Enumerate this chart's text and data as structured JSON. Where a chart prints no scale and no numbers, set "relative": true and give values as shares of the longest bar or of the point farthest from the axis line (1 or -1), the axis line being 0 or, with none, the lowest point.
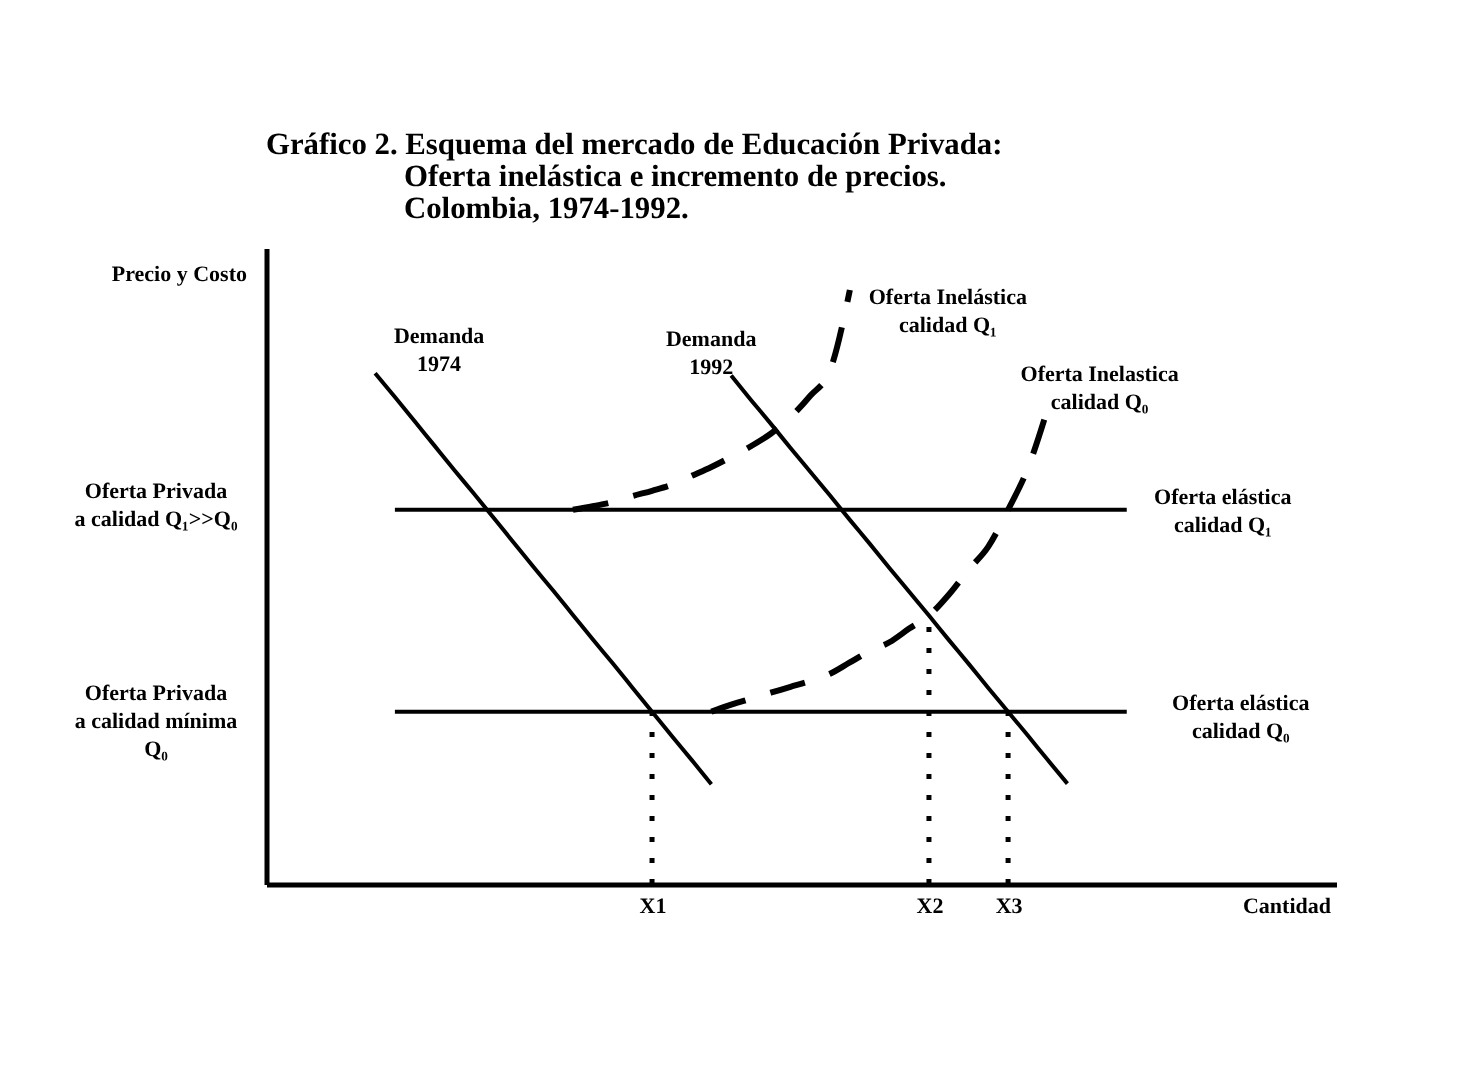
{
  "chart_data": {
    "type": "line",
    "title": "Gráfico 2. Esquema del mercado de Educación Privada:",
    "subtitle": "Oferta inelástica e incremento de precios.\nColombia, 1974-1992.",
    "xlabel": "Cantidad",
    "ylabel": "Precio y Costo",
    "relative": true,
    "tick_labels": "x",
    "line_style": "solid",
    "categories": [
      null,
      null,
      null,
      null,
      null,
      null,
      null,
      null,
      null,
      null,
      null,
      null,
      null,
      null,
      null,
      null,
      null,
      null,
      "X1",
      null,
      null,
      null,
      null,
      null,
      null,
      null,
      null,
      null,
      null,
      null,
      null,
      null,
      "X2",
      null,
      null,
      null,
      "X3",
      null,
      null,
      null,
      null,
      null,
      null
    ],
    "series": [
      {
        "name": "Demanda\n1974",
        "color": "#000000",
        "values": [
          null,
          null,
          null,
          null,
          0.86,
          0.82,
          0.779,
          0.738,
          0.697,
          0.657,
          0.616,
          0.575,
          0.534,
          0.494,
          0.453,
          0.412,
          0.372,
          0.331,
          0.29,
          0.249,
          0.209,
          0.168,
          null,
          null,
          null,
          null,
          null,
          null,
          null,
          null,
          null,
          null,
          null,
          null,
          null,
          null,
          null,
          null,
          null,
          null,
          null,
          null,
          null
        ]
      },
      {
        "name": "Demanda\n1992",
        "color": "#000000",
        "values": [
          null,
          null,
          null,
          null,
          null,
          null,
          null,
          null,
          null,
          null,
          null,
          null,
          null,
          null,
          null,
          null,
          null,
          null,
          null,
          null,
          null,
          null,
          0.856,
          0.815,
          0.775,
          0.734,
          0.694,
          0.654,
          0.613,
          0.573,
          0.532,
          0.492,
          0.452,
          0.411,
          0.371,
          0.33,
          0.29,
          0.25,
          0.209,
          0.169,
          null,
          null,
          null
        ]
      },
      {
        "name": "Oferta elástica\ncalidad Q₁",
        "color": "#000000",
        "values": [
          null,
          null,
          null,
          null,
          null,
          0.63,
          0.63,
          0.63,
          0.63,
          0.63,
          0.63,
          0.63,
          0.63,
          0.63,
          0.63,
          0.63,
          0.63,
          0.63,
          0.63,
          0.63,
          0.63,
          0.63,
          0.63,
          0.63,
          0.63,
          0.63,
          0.63,
          0.63,
          0.63,
          0.63,
          0.63,
          0.63,
          0.63,
          0.63,
          0.63,
          0.63,
          0.63,
          0.63,
          0.63,
          0.63,
          0.63,
          0.63,
          0.63
        ]
      },
      {
        "name": "Oferta elástica\ncalidad Q₀",
        "color": "#000000",
        "values": [
          null,
          null,
          null,
          null,
          null,
          0.29,
          0.29,
          0.29,
          0.29,
          0.29,
          0.29,
          0.29,
          0.29,
          0.29,
          0.29,
          0.29,
          0.29,
          0.29,
          0.29,
          0.29,
          0.29,
          0.29,
          0.29,
          0.29,
          0.29,
          0.29,
          0.29,
          0.29,
          0.29,
          0.29,
          0.29,
          0.29,
          0.29,
          0.29,
          0.29,
          0.29,
          0.29,
          0.29,
          0.29,
          0.29,
          0.29,
          0.29,
          0.29
        ]
      },
      {
        "name": "Oferta Inelástica\ncalidad Q₁",
        "color": "#000000",
        "line_style": "dashed",
        "values": [
          null,
          null,
          null,
          null,
          null,
          null,
          null,
          null,
          null,
          null,
          null,
          null,
          null,
          null,
          0.63,
          0.636,
          0.643,
          0.653,
          0.662,
          0.672,
          0.687,
          0.702,
          0.719,
          0.737,
          0.758,
          0.786,
          0.822,
          0.865,
          1.0,
          null,
          null,
          null,
          null,
          null,
          null,
          null,
          null,
          null,
          null,
          null,
          null,
          null,
          null
        ]
      },
      {
        "name": "Oferta Inelastica\ncalidad Q₀",
        "color": "#000000",
        "line_style": "dashed",
        "values": [
          null,
          null,
          null,
          null,
          null,
          null,
          null,
          null,
          null,
          null,
          null,
          null,
          null,
          null,
          null,
          null,
          null,
          null,
          null,
          null,
          null,
          0.29,
          0.302,
          0.312,
          0.322,
          0.332,
          0.342,
          0.354,
          0.373,
          0.392,
          0.407,
          0.43,
          0.452,
          0.487,
          0.529,
          0.568,
          0.63,
          0.7,
          0.8,
          null,
          null,
          null,
          null
        ]
      },
      {
        "color": "#000000",
        "line_style": "dotted",
        "x": [
          "X1",
          "X1"
        ],
        "values": [
          0,
          0.29
        ]
      },
      {
        "color": "#000000",
        "line_style": "dotted",
        "x": [
          "X2",
          "X2"
        ],
        "values": [
          0,
          0.452
        ]
      },
      {
        "color": "#000000",
        "line_style": "dotted",
        "x": [
          "X3",
          "X3"
        ],
        "values": [
          0,
          0.29
        ]
      }
    ],
    "annotations": [
      "Oferta Privada\na calidad Q₁>>Q₀",
      "Oferta Privada\na calidad mínima\nQ₀"
    ]
  }
}
